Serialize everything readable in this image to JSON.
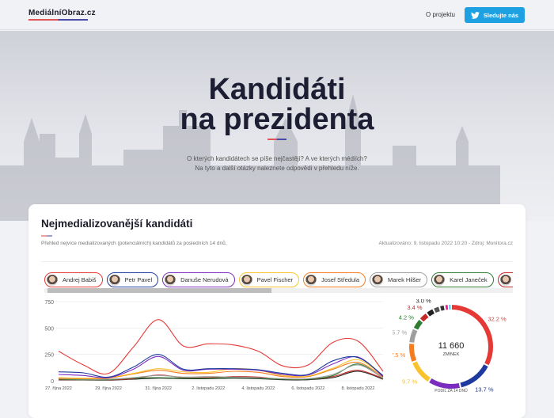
{
  "header": {
    "logo": "MediálníObraz.cz",
    "about": "O projektu",
    "twitter": "Sledujte nás",
    "twitter_icon": "twitter-bird-icon"
  },
  "hero": {
    "title_line1": "Kandidáti",
    "title_line2": "na prezidenta",
    "lead_line1": "O kterých kandidátech se píše nejčastěji? A ve kterých médiích?",
    "lead_line2": "Na tyto a další otázky naleznete odpovědi v přehledu níže."
  },
  "card": {
    "title": "Nejmedializovanější kandidáti",
    "subtitle": "Přehled nejvíce medializovaných (potenciálních) kandidátů za posledních 14 dnů.",
    "updated": "Aktualizováno: 9. listopadu 2022 10:20 - Zdroj: Monitora.cz"
  },
  "candidates": [
    {
      "name": "Andrej Babiš",
      "color": "#e53935"
    },
    {
      "name": "Petr Pavel",
      "color": "#1e3a9e"
    },
    {
      "name": "Danuše Nerudová",
      "color": "#7b2cbf"
    },
    {
      "name": "Pavel Fischer",
      "color": "#f9c22e"
    },
    {
      "name": "Josef Středula",
      "color": "#f57c20"
    },
    {
      "name": "Marek Hilšer",
      "color": "#9e9e9e"
    },
    {
      "name": "Karel Janeček",
      "color": "#2e7d32"
    },
    {
      "name": "J…",
      "color": "#c62828"
    }
  ],
  "chart_data": [
    {
      "type": "line",
      "ylim": [
        0,
        750
      ],
      "yticks": [
        "0",
        "250",
        "500",
        "750"
      ],
      "x": [
        "27. října 2022",
        "28. října 2022",
        "29. října 2022",
        "30. října 2022",
        "31. října 2022",
        "1. listopadu 2022",
        "2. listopadu 2022",
        "3. listopadu 2022",
        "4. listopadu 2022",
        "5. listopadu 2022",
        "6. listopadu 2022",
        "7. listopadu 2022",
        "8. listopadu 2022",
        "9. listopadu 2022"
      ],
      "xticks": [
        "27. října 2022",
        "29. října 2022",
        "31. října 2022",
        "2. listopadu 2022",
        "4. listopadu 2022",
        "6. listopadu 2022",
        "8. listopadu 2022"
      ],
      "series": [
        {
          "name": "Andrej Babiš",
          "color": "#e53935",
          "values": [
            280,
            150,
            70,
            320,
            580,
            330,
            350,
            340,
            280,
            140,
            150,
            365,
            375,
            90
          ]
        },
        {
          "name": "Petr Pavel",
          "color": "#1e3a9e",
          "values": [
            85,
            75,
            35,
            130,
            250,
            110,
            115,
            115,
            105,
            70,
            60,
            190,
            220,
            50
          ]
        },
        {
          "name": "Danuše Nerudová",
          "color": "#7b2cbf",
          "values": [
            60,
            50,
            30,
            110,
            230,
            100,
            110,
            110,
            100,
            60,
            55,
            160,
            225,
            40
          ]
        },
        {
          "name": "Pavel Fischer",
          "color": "#f9c22e",
          "values": [
            30,
            25,
            30,
            70,
            115,
            85,
            80,
            115,
            100,
            50,
            45,
            120,
            200,
            45
          ]
        },
        {
          "name": "Josef Středula",
          "color": "#f57c20",
          "values": [
            25,
            20,
            25,
            65,
            100,
            70,
            70,
            90,
            80,
            40,
            40,
            110,
            175,
            35
          ]
        },
        {
          "name": "Marek Hilšer",
          "color": "#9e9e9e",
          "values": [
            20,
            15,
            15,
            30,
            50,
            35,
            40,
            35,
            30,
            20,
            20,
            60,
            150,
            25
          ]
        },
        {
          "name": "Karel Janeček",
          "color": "#2e7d32",
          "values": [
            15,
            10,
            10,
            25,
            30,
            25,
            25,
            30,
            25,
            15,
            15,
            50,
            160,
            20
          ]
        },
        {
          "name": "",
          "color": "#c62828",
          "values": [
            10,
            10,
            8,
            20,
            55,
            30,
            30,
            40,
            35,
            15,
            15,
            40,
            100,
            20
          ]
        },
        {
          "name": "",
          "color": "#222222",
          "values": [
            8,
            8,
            6,
            15,
            25,
            20,
            20,
            25,
            20,
            10,
            10,
            30,
            90,
            15
          ]
        }
      ]
    },
    {
      "type": "pie",
      "total": "11 660",
      "total_label": "ZMÍNEK",
      "caption": "PODÍL ZA 14 DNŮ",
      "slices": [
        {
          "value": 32.2,
          "label": "32.2 %",
          "color": "#e53935"
        },
        {
          "value": 13.7,
          "label": "13.7 %",
          "color": "#1e3a9e"
        },
        {
          "value": 12.6,
          "label": "12.6 %",
          "color": "#7b2cbf"
        },
        {
          "value": 9.7,
          "label": "9.7 %",
          "color": "#f9c22e"
        },
        {
          "value": 7.5,
          "label": "7.5 %",
          "color": "#f57c20"
        },
        {
          "value": 5.7,
          "label": "5.7 %",
          "color": "#9e9e9e"
        },
        {
          "value": 4.2,
          "label": "4.2 %",
          "color": "#2e7d32"
        },
        {
          "value": 3.4,
          "label": "3.4 %",
          "color": "#c62828"
        },
        {
          "value": 3.0,
          "label": "3.0 %",
          "color": "#222222"
        },
        {
          "value": 2.5,
          "label": "",
          "color": "#555555"
        },
        {
          "value": 2.0,
          "label": "",
          "color": "#333333"
        },
        {
          "value": 1.5,
          "label": "",
          "color": "#e91e8c"
        },
        {
          "value": 1.0,
          "label": "",
          "color": "#2196f3"
        }
      ]
    }
  ]
}
